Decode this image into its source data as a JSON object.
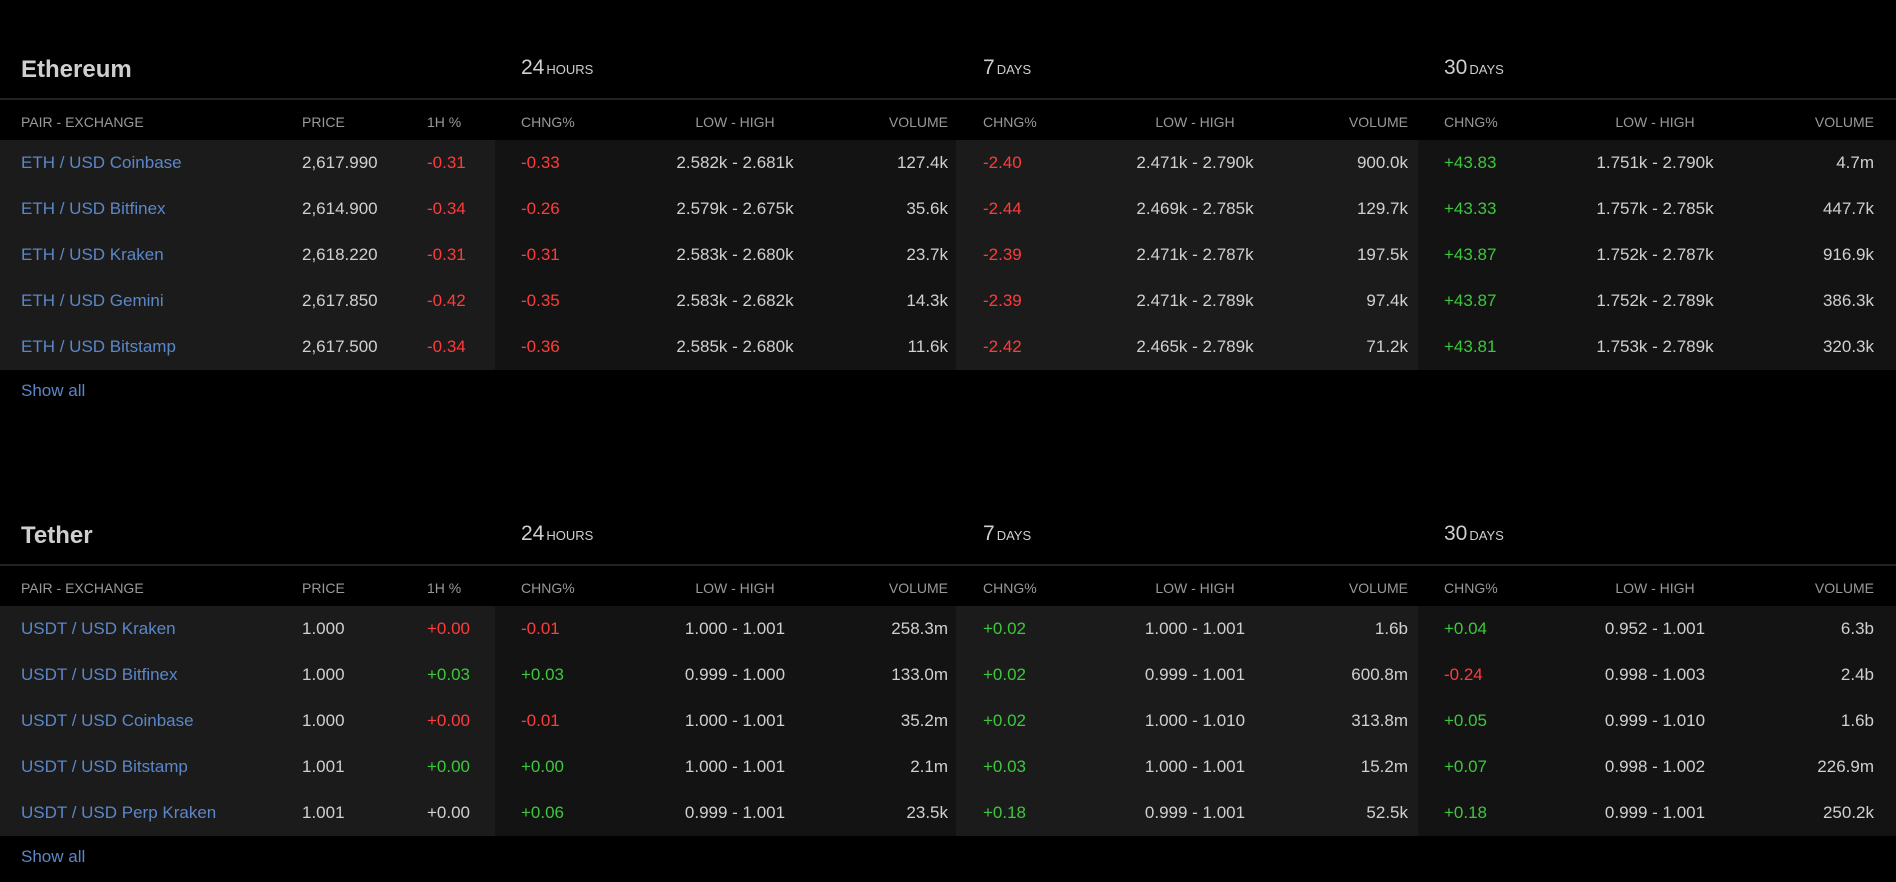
{
  "columns": {
    "pair": "PAIR - EXCHANGE",
    "price": "PRICE",
    "h1": "1H %",
    "chg": "CHNG%",
    "lowhigh": "LOW - HIGH",
    "volume": "VOLUME"
  },
  "periods": {
    "p24_num": "24",
    "p24_unit": "HOURS",
    "p7_num": "7",
    "p7_unit": "DAYS",
    "p30_num": "30",
    "p30_unit": "DAYS"
  },
  "show_all_label": "Show all",
  "sections": [
    {
      "title": "Ethereum",
      "rows": [
        {
          "pair": "ETH / USD Coinbase",
          "price": "2,617.990",
          "h1": "-0.31",
          "chg24": "-0.33",
          "lh24": "2.582k - 2.681k",
          "vol24": "127.4k",
          "chg7": "-2.40",
          "lh7": "2.471k - 2.790k",
          "vol7": "900.0k",
          "chg30": "+43.83",
          "lh30": "1.751k - 2.790k",
          "vol30": "4.7m"
        },
        {
          "pair": "ETH / USD Bitfinex",
          "price": "2,614.900",
          "h1": "-0.34",
          "chg24": "-0.26",
          "lh24": "2.579k - 2.675k",
          "vol24": "35.6k",
          "chg7": "-2.44",
          "lh7": "2.469k - 2.785k",
          "vol7": "129.7k",
          "chg30": "+43.33",
          "lh30": "1.757k - 2.785k",
          "vol30": "447.7k"
        },
        {
          "pair": "ETH / USD Kraken",
          "price": "2,618.220",
          "h1": "-0.31",
          "chg24": "-0.31",
          "lh24": "2.583k - 2.680k",
          "vol24": "23.7k",
          "chg7": "-2.39",
          "lh7": "2.471k - 2.787k",
          "vol7": "197.5k",
          "chg30": "+43.87",
          "lh30": "1.752k - 2.787k",
          "vol30": "916.9k"
        },
        {
          "pair": "ETH / USD Gemini",
          "price": "2,617.850",
          "h1": "-0.42",
          "chg24": "-0.35",
          "lh24": "2.583k - 2.682k",
          "vol24": "14.3k",
          "chg7": "-2.39",
          "lh7": "2.471k - 2.789k",
          "vol7": "97.4k",
          "chg30": "+43.87",
          "lh30": "1.752k - 2.789k",
          "vol30": "386.3k"
        },
        {
          "pair": "ETH / USD Bitstamp",
          "price": "2,617.500",
          "h1": "-0.34",
          "chg24": "-0.36",
          "lh24": "2.585k - 2.680k",
          "vol24": "11.6k",
          "chg7": "-2.42",
          "lh7": "2.465k - 2.789k",
          "vol7": "71.2k",
          "chg30": "+43.81",
          "lh30": "1.753k - 2.789k",
          "vol30": "320.3k"
        }
      ]
    },
    {
      "title": "Tether",
      "rows": [
        {
          "pair": "USDT / USD Kraken",
          "price": "1.000",
          "h1": "+0.00",
          "chg24": "-0.01",
          "lh24": "1.000 - 1.001",
          "vol24": "258.3m",
          "chg7": "+0.02",
          "lh7": "1.000 - 1.001",
          "vol7": "1.6b",
          "chg30": "+0.04",
          "lh30": "0.952 - 1.001",
          "vol30": "6.3b"
        },
        {
          "pair": "USDT / USD Bitfinex",
          "price": "1.000",
          "h1": "+0.03",
          "chg24": "+0.03",
          "lh24": "0.999 - 1.000",
          "vol24": "133.0m",
          "chg7": "+0.02",
          "lh7": "0.999 - 1.001",
          "vol7": "600.8m",
          "chg30": "-0.24",
          "lh30": "0.998 - 1.003",
          "vol30": "2.4b"
        },
        {
          "pair": "USDT / USD Coinbase",
          "price": "1.000",
          "h1": "+0.00",
          "chg24": "-0.01",
          "lh24": "1.000 - 1.001",
          "vol24": "35.2m",
          "chg7": "+0.02",
          "lh7": "1.000 - 1.010",
          "vol7": "313.8m",
          "chg30": "+0.05",
          "lh30": "0.999 - 1.010",
          "vol30": "1.6b"
        },
        {
          "pair": "USDT / USD Bitstamp",
          "price": "1.001",
          "h1": "+0.00",
          "chg24": "+0.00",
          "lh24": "1.000 - 1.001",
          "vol24": "2.1m",
          "chg7": "+0.03",
          "lh7": "1.000 - 1.001",
          "vol7": "15.2m",
          "chg30": "+0.07",
          "lh30": "0.998 - 1.002",
          "vol30": "226.9m"
        },
        {
          "pair": "USDT / USD Perp Kraken",
          "price": "1.001",
          "h1": "+0.00",
          "chg24": "+0.06",
          "lh24": "0.999 - 1.001",
          "vol24": "23.5k",
          "chg7": "+0.18",
          "lh7": "0.999 - 1.001",
          "vol7": "52.5k",
          "chg30": "+0.18",
          "lh30": "0.999 - 1.001",
          "vol30": "250.2k"
        }
      ]
    }
  ],
  "colors": {
    "negative": "#ff3b3b",
    "positive": "#3cc83c",
    "link": "#5b87c9",
    "neutral": "#d0d0d0"
  },
  "h1_neutral_flags": [
    [
      false,
      false,
      false,
      false,
      false
    ],
    [
      false,
      false,
      false,
      false,
      true
    ]
  ],
  "h1_red_zero_flags": [
    [
      false,
      false,
      false,
      false,
      false
    ],
    [
      true,
      false,
      true,
      false,
      false
    ]
  ]
}
